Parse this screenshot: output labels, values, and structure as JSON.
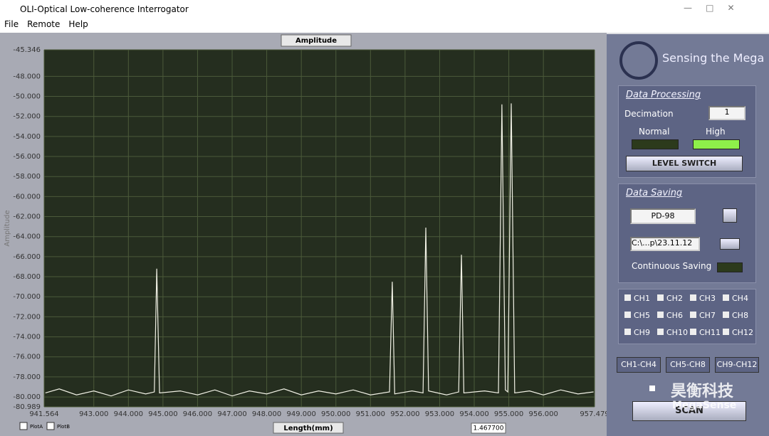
{
  "window": {
    "title": "OLI-Optical Low-coherence Interrogator",
    "menu": [
      "File",
      "Remote",
      "Help"
    ]
  },
  "chart_data": {
    "type": "line",
    "title": "Amplitude",
    "y_label": "Amplitude",
    "x_label": "Length(mm)",
    "x": [
      941.6,
      942.0,
      942.5,
      943.0,
      943.5,
      944.0,
      944.5,
      944.75,
      944.82,
      944.9,
      945.5,
      946.0,
      946.5,
      947.0,
      947.5,
      948.0,
      948.5,
      949.0,
      949.5,
      950.0,
      950.5,
      951.0,
      951.55,
      951.63,
      951.7,
      952.2,
      952.52,
      952.6,
      952.68,
      953.2,
      953.55,
      953.63,
      953.7,
      954.3,
      954.7,
      954.8,
      954.9,
      954.97,
      955.07,
      955.17,
      955.6,
      956.0,
      956.5,
      957.0,
      957.45
    ],
    "series": [
      {
        "name": "PlotA",
        "color": "#f2f2e6",
        "values": [
          -79.6,
          -79.2,
          -79.8,
          -79.4,
          -79.9,
          -79.3,
          -79.7,
          -79.5,
          -67.2,
          -79.6,
          -79.4,
          -79.8,
          -79.3,
          -79.9,
          -79.4,
          -79.7,
          -79.2,
          -79.8,
          -79.4,
          -79.7,
          -79.3,
          -79.8,
          -79.5,
          -68.5,
          -79.7,
          -79.4,
          -79.6,
          -63.1,
          -79.4,
          -79.8,
          -79.5,
          -65.8,
          -79.6,
          -79.4,
          -79.6,
          -50.8,
          -79.3,
          -79.5,
          -50.7,
          -79.6,
          -79.4,
          -79.8,
          -79.3,
          -79.7,
          -79.5
        ]
      }
    ],
    "legend": [
      "PlotA",
      "PlotB"
    ],
    "xlim": [
      941.564,
      957.479
    ],
    "ylim": [
      -80.989,
      -45.346
    ],
    "xticks": [
      941.564,
      {
        "value": 943,
        "label": "943.000"
      },
      {
        "value": 944,
        "label": "944.000"
      },
      {
        "value": 945,
        "label": "945.000"
      },
      {
        "value": 946,
        "label": "946.000"
      },
      {
        "value": 947,
        "label": "947.000"
      },
      {
        "value": 948,
        "label": "948.000"
      },
      {
        "value": 949,
        "label": "949.000"
      },
      {
        "value": 950,
        "label": "950.000"
      },
      {
        "value": 951,
        "label": "951.000"
      },
      {
        "value": 952,
        "label": "952.000"
      },
      {
        "value": 953,
        "label": "953.000"
      },
      {
        "value": 954,
        "label": "954.000"
      },
      {
        "value": 955,
        "label": "955.000"
      },
      {
        "value": 956,
        "label": "956.000"
      },
      957.479
    ],
    "yticks": [
      -45.346,
      {
        "value": -48,
        "label": "-48.000"
      },
      {
        "value": -50,
        "label": "-50.000"
      },
      {
        "value": -52,
        "label": "-52.000"
      },
      {
        "value": -54,
        "label": "-54.000"
      },
      {
        "value": -56,
        "label": "-56.000"
      },
      {
        "value": -58,
        "label": "-58.000"
      },
      {
        "value": -60,
        "label": "-60.000"
      },
      {
        "value": -62,
        "label": "-62.000"
      },
      {
        "value": -64,
        "label": "-64.000"
      },
      {
        "value": -66,
        "label": "-66.000"
      },
      {
        "value": -68,
        "label": "-68.000"
      },
      {
        "value": -70,
        "label": "-70.000"
      },
      {
        "value": -72,
        "label": "-72.000"
      },
      {
        "value": -74,
        "label": "-74.000"
      },
      {
        "value": -76,
        "label": "-76.000"
      },
      {
        "value": -78,
        "label": "-78.000"
      },
      {
        "value": -80,
        "label": "-80.000"
      },
      -80.989
    ],
    "grid": true,
    "cursor_value": "1.467700"
  },
  "panel": {
    "logo": "Sensing the Mega",
    "processing": {
      "title": "Data Processing",
      "decimation_label": "Decimation",
      "decimation": "1",
      "normal": "Normal",
      "high": "High",
      "button": "LEVEL   SWITCH"
    },
    "saving": {
      "title": "Data Saving",
      "name": "PD-98",
      "path": "C:\\...p\\23.11.12",
      "continuous": "Continuous  Saving"
    },
    "channels": [
      "CH1",
      "CH2",
      "CH3",
      "CH4",
      "CH5",
      "CH6",
      "CH7",
      "CH8",
      "CH9",
      "CH10",
      "CH11",
      "CH12"
    ],
    "groups": [
      "CH1-CH4",
      "CH5-CH8",
      "CH9-CH12"
    ],
    "scan": "SCAN"
  },
  "watermark": {
    "cn": "昊衡科技",
    "en": "MegaSense"
  }
}
